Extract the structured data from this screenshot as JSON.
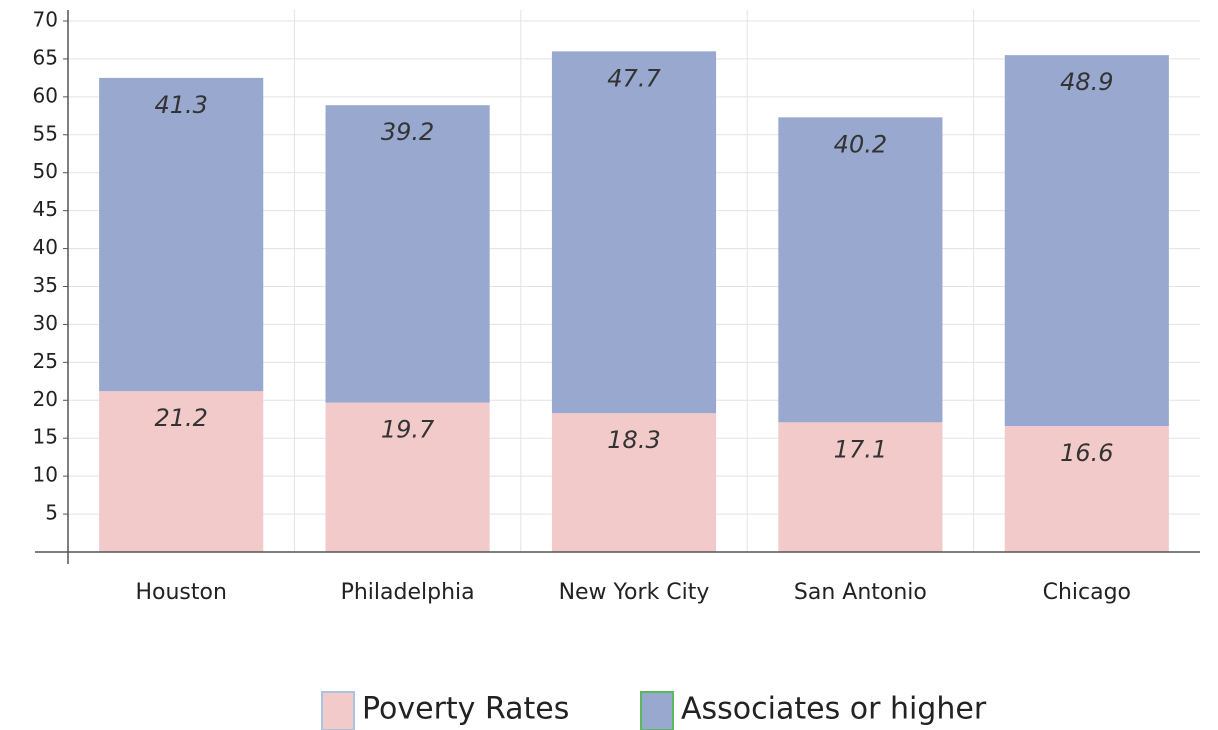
{
  "chart_data": {
    "type": "stacked_bar",
    "categories": [
      "Houston",
      "Philadelphia",
      "New York City",
      "San Antonio",
      "Chicago"
    ],
    "series": [
      {
        "name": "Poverty Rates",
        "color": "#f2caca",
        "edge_color": "#a9c4e0",
        "values": [
          21.2,
          19.7,
          18.3,
          17.1,
          16.6
        ]
      },
      {
        "name": "Associates or higher",
        "color": "#98a8cf",
        "edge_color": "#5cb85c",
        "values": [
          41.3,
          39.2,
          47.7,
          40.2,
          48.9
        ]
      }
    ],
    "ylim": [
      0,
      70
    ],
    "yticks": [
      5,
      10,
      15,
      20,
      25,
      30,
      35,
      40,
      45,
      50,
      55,
      60,
      65,
      70
    ],
    "grid": true,
    "legend": "bottom"
  }
}
